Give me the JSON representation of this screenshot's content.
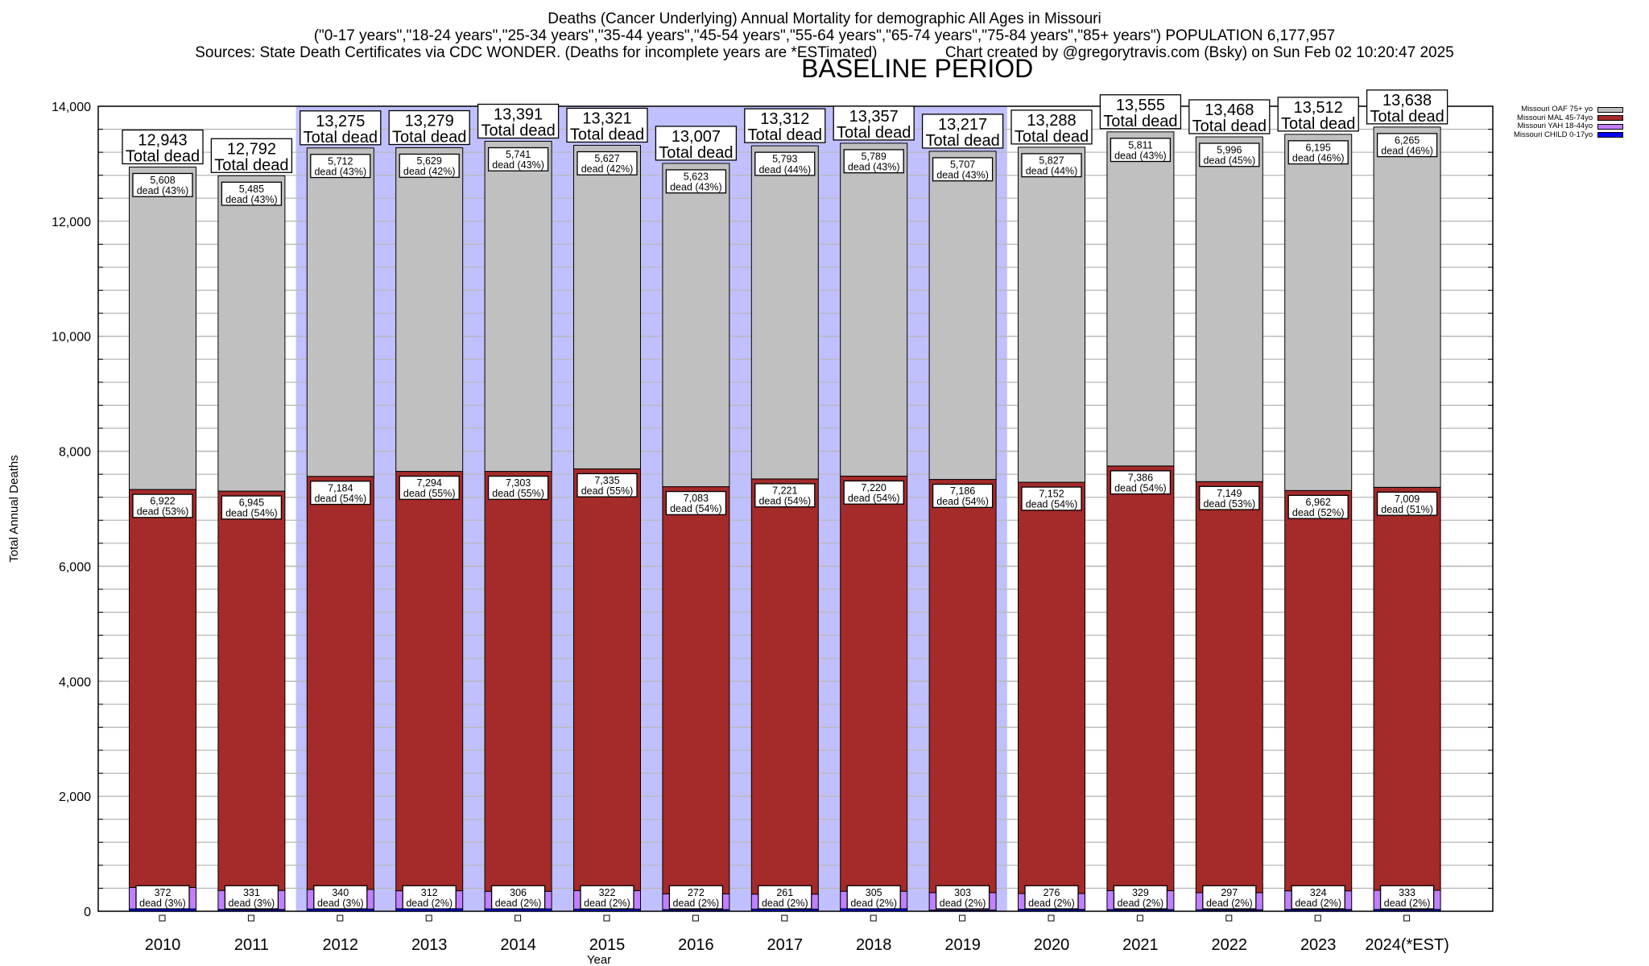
{
  "title": {
    "line1": "Deaths (Cancer Underlying) Annual Mortality for demographic All Ages in Missouri",
    "line2": "(\"0-17 years\",\"18-24 years\",\"25-34 years\",\"35-44 years\",\"45-54 years\",\"55-64 years\",\"65-74 years\",\"75-84 years\",\"85+ years\") POPULATION 6,177,957",
    "line3_left": "Sources: State Death Certificates via CDC WONDER. (Deaths for incomplete years are *ESTimated)",
    "line3_right": "Chart created by @gregorytravis.com (Bsky) on Sun Feb 02 10:20:47 2025"
  },
  "legend": [
    {
      "label": "Missouri OAF 75+ yo",
      "color": "#c0c0c0"
    },
    {
      "label": "Missouri MAL 45-74yo",
      "color": "#a52a2a"
    },
    {
      "label": "Missouri YAH 18-44yo",
      "color": "#c080ff"
    },
    {
      "label": "Missouri CHILD 0-17yo",
      "color": "#0000ff"
    }
  ],
  "chart_data": {
    "type": "bar",
    "stacked": true,
    "title": "Deaths (Cancer Underlying) Annual Mortality for demographic All Ages in Missouri",
    "xlabel": "Year",
    "ylabel": "Total Annual Deaths",
    "ylim": [
      0,
      14000
    ],
    "yticks": [
      0,
      2000,
      4000,
      6000,
      8000,
      10000,
      12000,
      14000
    ],
    "ytick_labels": [
      "0",
      "2,000",
      "4,000",
      "6,000",
      "8,000",
      "10,000",
      "12,000",
      "14,000"
    ],
    "minor_grid_step": 400,
    "grid": true,
    "legend_position": "top-right",
    "categories": [
      "2010",
      "2011",
      "2012",
      "2013",
      "2014",
      "2015",
      "2016",
      "2017",
      "2018",
      "2019",
      "2020",
      "2021",
      "2022",
      "2023",
      "2024(*EST)"
    ],
    "series": [
      {
        "name": "Missouri CHILD 0-17yo",
        "color": "#0000ff",
        "values": [
          41,
          31,
          39,
          44,
          41,
          37,
          29,
          37,
          43,
          21,
          33,
          29,
          26,
          31,
          31
        ]
      },
      {
        "name": "Missouri YAH 18-44yo",
        "color": "#c080ff",
        "values": [
          372,
          331,
          340,
          312,
          306,
          322,
          272,
          261,
          305,
          303,
          276,
          329,
          297,
          324,
          333
        ],
        "pct": [
          3,
          3,
          3,
          2,
          2,
          2,
          2,
          2,
          2,
          2,
          2,
          2,
          2,
          2,
          2
        ]
      },
      {
        "name": "Missouri MAL 45-74yo",
        "color": "#a52a2a",
        "values": [
          6922,
          6945,
          7184,
          7294,
          7303,
          7335,
          7083,
          7221,
          7220,
          7186,
          7152,
          7386,
          7149,
          6962,
          7009
        ],
        "pct": [
          53,
          54,
          54,
          55,
          55,
          55,
          54,
          54,
          54,
          54,
          54,
          54,
          53,
          52,
          51
        ]
      },
      {
        "name": "Missouri OAF 75+ yo",
        "color": "#c0c0c0",
        "values": [
          5608,
          5485,
          5712,
          5629,
          5741,
          5627,
          5623,
          5793,
          5789,
          5707,
          5827,
          5811,
          5996,
          6195,
          6265
        ],
        "pct": [
          43,
          43,
          43,
          42,
          43,
          42,
          43,
          44,
          43,
          43,
          44,
          43,
          45,
          46,
          46
        ]
      }
    ],
    "totals": [
      12943,
      12792,
      13275,
      13279,
      13391,
      13321,
      13007,
      13312,
      13357,
      13217,
      13288,
      13555,
      13468,
      13512,
      13638
    ],
    "total_suffix": "Total dead",
    "segment_suffix": "dead",
    "annotation": {
      "text": "BASELINE PERIOD",
      "from": "2012",
      "to": "2019",
      "color": "#c0c0ff"
    }
  }
}
